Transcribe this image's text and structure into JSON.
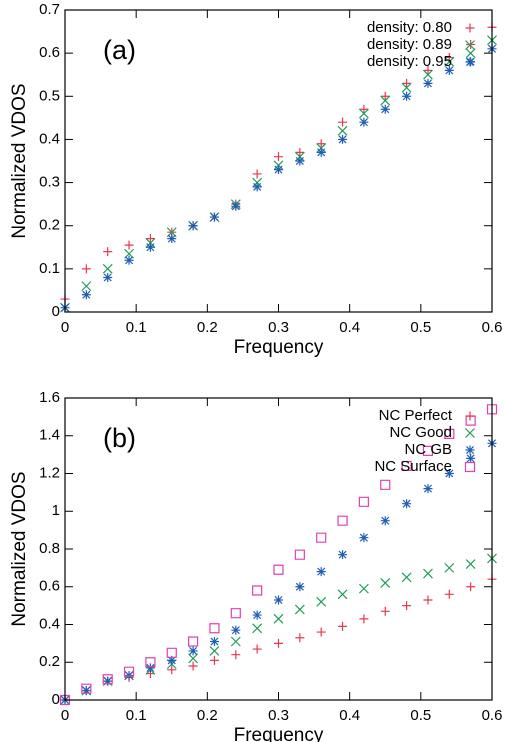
{
  "chart_data": [
    {
      "type": "scatter",
      "annotation": "(a)",
      "xlabel": "Frequency",
      "ylabel": "Normalized VDOS",
      "xlim": [
        0,
        0.6
      ],
      "ylim": [
        0,
        0.7
      ],
      "xticks": [
        0,
        0.1,
        0.2,
        0.3,
        0.4,
        0.5,
        0.6
      ],
      "yticks": [
        0,
        0.1,
        0.2,
        0.3,
        0.4,
        0.5,
        0.6,
        0.7
      ],
      "legend": "upper-right",
      "x": [
        0,
        0.03,
        0.06,
        0.09,
        0.12,
        0.15,
        0.18,
        0.21,
        0.24,
        0.27,
        0.3,
        0.33,
        0.36,
        0.39,
        0.42,
        0.45,
        0.48,
        0.51,
        0.54,
        0.57,
        0.6
      ],
      "series": [
        {
          "name": "density: 0.80",
          "color": "#e8384f",
          "marker": "plus",
          "values": [
            0.03,
            0.1,
            0.14,
            0.155,
            0.17,
            0.185,
            0.2,
            0.22,
            0.25,
            0.32,
            0.36,
            0.37,
            0.39,
            0.44,
            0.47,
            0.5,
            0.53,
            0.56,
            0.59,
            0.62,
            0.66
          ]
        },
        {
          "name": "density: 0.89",
          "color": "#1f9e5a",
          "marker": "cross",
          "values": [
            0.01,
            0.06,
            0.1,
            0.135,
            0.16,
            0.185,
            0.2,
            0.22,
            0.25,
            0.3,
            0.34,
            0.36,
            0.38,
            0.42,
            0.46,
            0.49,
            0.52,
            0.55,
            0.58,
            0.6,
            0.63
          ]
        },
        {
          "name": "density: 0.95",
          "color": "#1f5fb4",
          "marker": "star",
          "values": [
            0.01,
            0.04,
            0.08,
            0.12,
            0.15,
            0.17,
            0.2,
            0.22,
            0.245,
            0.29,
            0.33,
            0.35,
            0.37,
            0.4,
            0.44,
            0.47,
            0.5,
            0.53,
            0.56,
            0.58,
            0.61
          ]
        }
      ]
    },
    {
      "type": "scatter",
      "annotation": "(b)",
      "xlabel": "Frequency",
      "ylabel": "Normalized VDOS",
      "xlim": [
        0,
        0.6
      ],
      "ylim": [
        0,
        1.6
      ],
      "xticks": [
        0,
        0.1,
        0.2,
        0.3,
        0.4,
        0.5,
        0.6
      ],
      "yticks": [
        0,
        0.2,
        0.4,
        0.6,
        0.8,
        1,
        1.2,
        1.4,
        1.6
      ],
      "legend": "upper-right",
      "x": [
        0,
        0.03,
        0.06,
        0.09,
        0.12,
        0.15,
        0.18,
        0.21,
        0.24,
        0.27,
        0.3,
        0.33,
        0.36,
        0.39,
        0.42,
        0.45,
        0.48,
        0.51,
        0.54,
        0.57,
        0.6
      ],
      "series": [
        {
          "name": "NC Perfect",
          "color": "#e8384f",
          "marker": "plus",
          "values": [
            0,
            0.05,
            0.1,
            0.12,
            0.14,
            0.16,
            0.18,
            0.21,
            0.24,
            0.27,
            0.3,
            0.33,
            0.36,
            0.39,
            0.43,
            0.47,
            0.5,
            0.53,
            0.56,
            0.6,
            0.64
          ]
        },
        {
          "name": "NC Good",
          "color": "#1f9e5a",
          "marker": "cross",
          "values": [
            0,
            0.05,
            0.1,
            0.13,
            0.16,
            0.19,
            0.22,
            0.26,
            0.31,
            0.38,
            0.43,
            0.48,
            0.52,
            0.56,
            0.59,
            0.62,
            0.65,
            0.67,
            0.7,
            0.72,
            0.75
          ]
        },
        {
          "name": "NC GB",
          "color": "#1f5fb4",
          "marker": "star",
          "values": [
            0,
            0.05,
            0.1,
            0.13,
            0.17,
            0.21,
            0.26,
            0.31,
            0.37,
            0.45,
            0.53,
            0.6,
            0.68,
            0.77,
            0.86,
            0.95,
            1.04,
            1.12,
            1.2,
            1.28,
            1.36
          ]
        },
        {
          "name": "NC Surface",
          "color": "#e040b0",
          "marker": "square",
          "values": [
            0,
            0.06,
            0.11,
            0.15,
            0.2,
            0.25,
            0.31,
            0.38,
            0.46,
            0.58,
            0.69,
            0.77,
            0.86,
            0.95,
            1.05,
            1.14,
            1.24,
            1.32,
            1.41,
            1.48,
            1.54
          ]
        }
      ]
    }
  ]
}
